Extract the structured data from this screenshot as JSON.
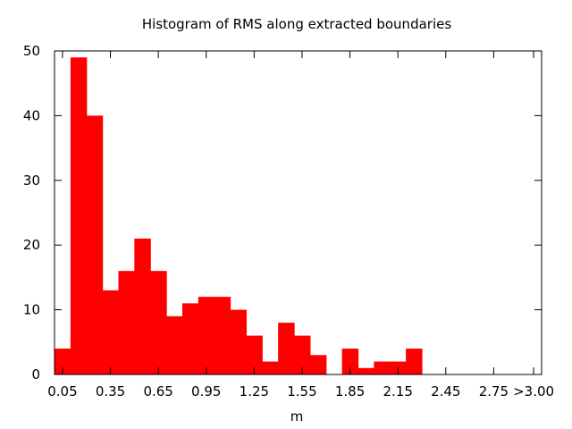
{
  "chart_data": {
    "type": "bar",
    "title": "Histogram of RMS along extracted boundaries",
    "xlabel": "m",
    "ylabel": "",
    "bin_width": 0.1,
    "bin_centers": [
      0.05,
      0.15,
      0.25,
      0.35,
      0.45,
      0.55,
      0.65,
      0.75,
      0.85,
      0.95,
      1.05,
      1.15,
      1.25,
      1.35,
      1.45,
      1.55,
      1.65,
      1.75,
      1.85,
      1.95,
      2.05,
      2.15,
      2.25,
      2.35,
      2.45,
      2.55,
      2.65,
      2.75,
      2.85,
      2.95
    ],
    "values": [
      4,
      49,
      40,
      13,
      16,
      21,
      16,
      9,
      11,
      12,
      12,
      10,
      6,
      2,
      8,
      6,
      3,
      0,
      4,
      1,
      2,
      2,
      4,
      0,
      0,
      0,
      0,
      0,
      0,
      0
    ],
    "xlim": [
      0.0,
      3.05
    ],
    "ylim": [
      0,
      50
    ],
    "x_tick_values": [
      0.05,
      0.35,
      0.65,
      0.95,
      1.25,
      1.55,
      1.85,
      2.15,
      2.45,
      2.75,
      3.0
    ],
    "x_tick_labels": [
      "0.05",
      "0.35",
      "0.65",
      "0.95",
      "1.25",
      "1.55",
      "1.85",
      "2.15",
      "2.45",
      "2.75",
      ">3.00"
    ],
    "y_tick_values": [
      0,
      10,
      20,
      30,
      40,
      50
    ],
    "y_tick_labels": [
      "0",
      "10",
      "20",
      "30",
      "40",
      "50"
    ],
    "bar_color": "#ff0000",
    "grid": false,
    "legend": "none"
  }
}
